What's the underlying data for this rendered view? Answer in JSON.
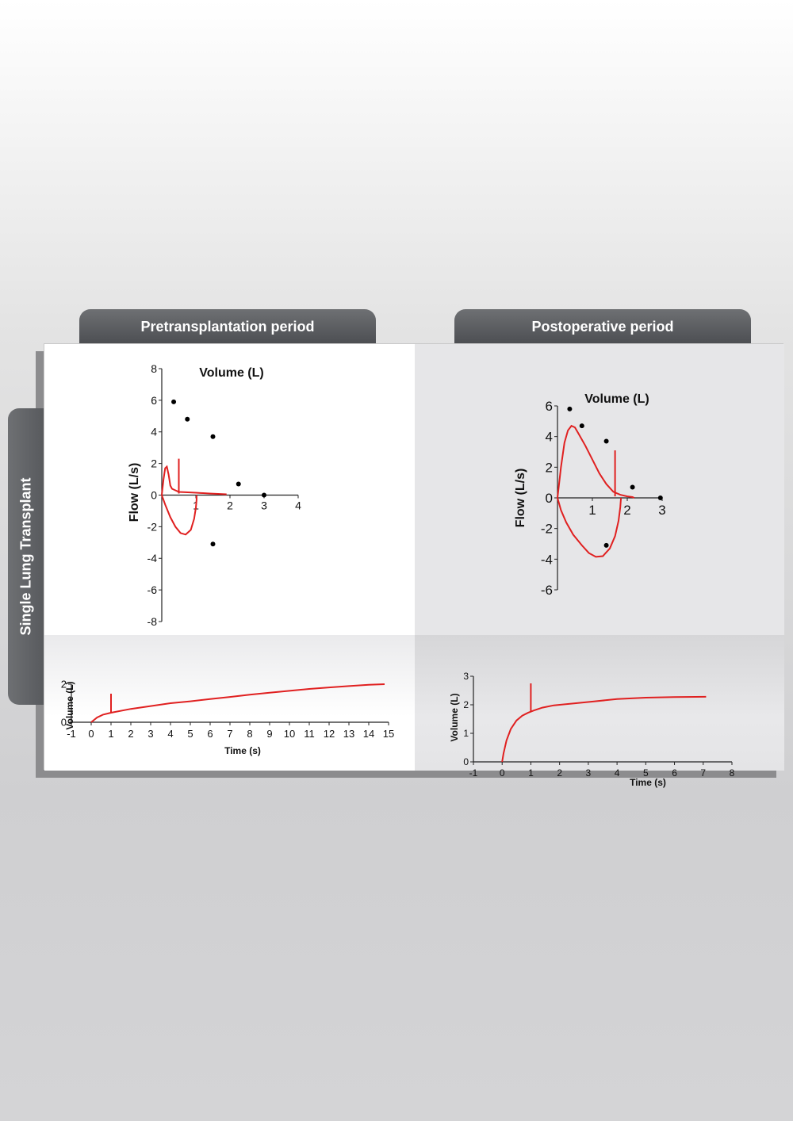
{
  "tabs": {
    "left": "Pretransplantation period",
    "right": "Postoperative period",
    "side": "Single Lung Transplant"
  },
  "colors": {
    "curve": "#e02020",
    "tab": "#55575b",
    "points": "#000000"
  },
  "chart_data": [
    {
      "id": "pre-flow-volume",
      "type": "line",
      "title": "Volume (L)",
      "xlabel": "Volume (L)",
      "ylabel": "Flow (L/s)",
      "xlim": [
        0,
        4
      ],
      "ylim": [
        -8,
        8
      ],
      "x_ticks": [
        1,
        2,
        3,
        4
      ],
      "y_ticks": [
        8,
        6,
        4,
        2,
        0,
        -2,
        -4,
        -6,
        -8
      ],
      "series": [
        {
          "kind": "curve",
          "x": [
            0,
            0.05,
            0.1,
            0.15,
            0.2,
            0.25,
            0.3,
            0.4,
            0.5,
            0.7,
            1.0,
            1.4,
            1.9
          ],
          "y": [
            0,
            1.0,
            1.7,
            1.8,
            1.3,
            0.6,
            0.4,
            0.3,
            0.2,
            0.18,
            0.15,
            0.1,
            0.05
          ]
        },
        {
          "kind": "curve",
          "x": [
            0,
            0.1,
            0.25,
            0.4,
            0.55,
            0.7,
            0.85,
            0.95,
            1.0,
            1.02,
            1.02
          ],
          "y": [
            0,
            -0.6,
            -1.4,
            -2.0,
            -2.4,
            -2.5,
            -2.2,
            -1.5,
            -0.8,
            -0.3,
            0
          ]
        },
        {
          "kind": "marker",
          "x": [
            0.5,
            0.5
          ],
          "y": [
            2.3,
            0.1
          ]
        },
        {
          "kind": "points",
          "x": [
            0.35,
            0.75,
            1.5,
            2.25,
            3.0,
            1.5
          ],
          "y": [
            5.9,
            4.8,
            3.7,
            0.7,
            0.0,
            -3.1
          ]
        }
      ]
    },
    {
      "id": "post-flow-volume",
      "type": "line",
      "title": "Volume (L)",
      "xlabel": "Volume (L)",
      "ylabel": "Flow (L/s)",
      "xlim": [
        0,
        3
      ],
      "ylim": [
        -6,
        6
      ],
      "x_ticks": [
        1,
        2,
        3
      ],
      "y_ticks": [
        6,
        4,
        2,
        0,
        -2,
        -4,
        -6
      ],
      "series": [
        {
          "kind": "curve",
          "x": [
            0,
            0.05,
            0.1,
            0.2,
            0.3,
            0.4,
            0.5,
            0.6,
            0.8,
            1.0,
            1.2,
            1.4,
            1.6,
            1.8,
            2.0,
            2.15,
            2.2
          ],
          "y": [
            0,
            1.0,
            2.0,
            3.6,
            4.4,
            4.7,
            4.6,
            4.2,
            3.4,
            2.5,
            1.6,
            0.9,
            0.4,
            0.2,
            0.1,
            0.05,
            0
          ]
        },
        {
          "kind": "curve",
          "x": [
            0,
            0.1,
            0.25,
            0.45,
            0.7,
            0.9,
            1.1,
            1.3,
            1.5,
            1.65,
            1.75,
            1.8,
            1.82
          ],
          "y": [
            0,
            -0.8,
            -1.6,
            -2.4,
            -3.1,
            -3.6,
            -3.85,
            -3.8,
            -3.3,
            -2.5,
            -1.5,
            -0.6,
            0
          ]
        },
        {
          "kind": "marker",
          "x": [
            1.65,
            1.65
          ],
          "y": [
            3.1,
            0.1
          ]
        },
        {
          "kind": "points",
          "x": [
            0.35,
            0.7,
            1.4,
            2.15,
            2.95,
            1.4
          ],
          "y": [
            5.8,
            4.7,
            3.7,
            0.7,
            0.0,
            -3.1
          ]
        }
      ]
    },
    {
      "id": "pre-volume-time",
      "type": "line",
      "xlabel": "Time (s)",
      "ylabel": "Volume (L)",
      "xlim": [
        -1,
        15
      ],
      "ylim": [
        0,
        2
      ],
      "x_ticks": [
        -1,
        0,
        1,
        2,
        3,
        4,
        5,
        6,
        7,
        8,
        9,
        10,
        11,
        12,
        13,
        14,
        15
      ],
      "y_ticks": [
        0,
        2
      ],
      "series": [
        {
          "kind": "curve",
          "x": [
            0,
            0.3,
            0.6,
            1,
            2,
            3,
            4,
            5,
            6,
            7,
            8,
            9,
            10,
            11,
            12,
            13,
            14,
            14.8
          ],
          "y": [
            0,
            0.25,
            0.4,
            0.5,
            0.7,
            0.85,
            1.0,
            1.1,
            1.22,
            1.33,
            1.45,
            1.55,
            1.65,
            1.75,
            1.83,
            1.9,
            1.97,
            2.0
          ]
        },
        {
          "kind": "marker",
          "x": [
            1,
            1
          ],
          "y": [
            1.5,
            0.5
          ]
        }
      ]
    },
    {
      "id": "post-volume-time",
      "type": "line",
      "xlabel": "Time (s)",
      "ylabel": "Volume (L)",
      "xlim": [
        -1,
        8
      ],
      "ylim": [
        0,
        3
      ],
      "x_ticks": [
        -1,
        0,
        1,
        2,
        3,
        4,
        5,
        6,
        7,
        8
      ],
      "y_ticks": [
        0,
        1,
        2,
        3
      ],
      "series": [
        {
          "kind": "curve",
          "x": [
            0,
            0.05,
            0.15,
            0.3,
            0.5,
            0.7,
            0.9,
            1.1,
            1.4,
            1.8,
            2.5,
            3.2,
            4,
            5,
            6,
            7.1
          ],
          "y": [
            0,
            0.3,
            0.75,
            1.15,
            1.45,
            1.62,
            1.72,
            1.8,
            1.9,
            1.98,
            2.05,
            2.12,
            2.2,
            2.25,
            2.27,
            2.28
          ]
        },
        {
          "kind": "marker",
          "x": [
            1,
            1
          ],
          "y": [
            2.75,
            1.75
          ]
        }
      ]
    }
  ]
}
